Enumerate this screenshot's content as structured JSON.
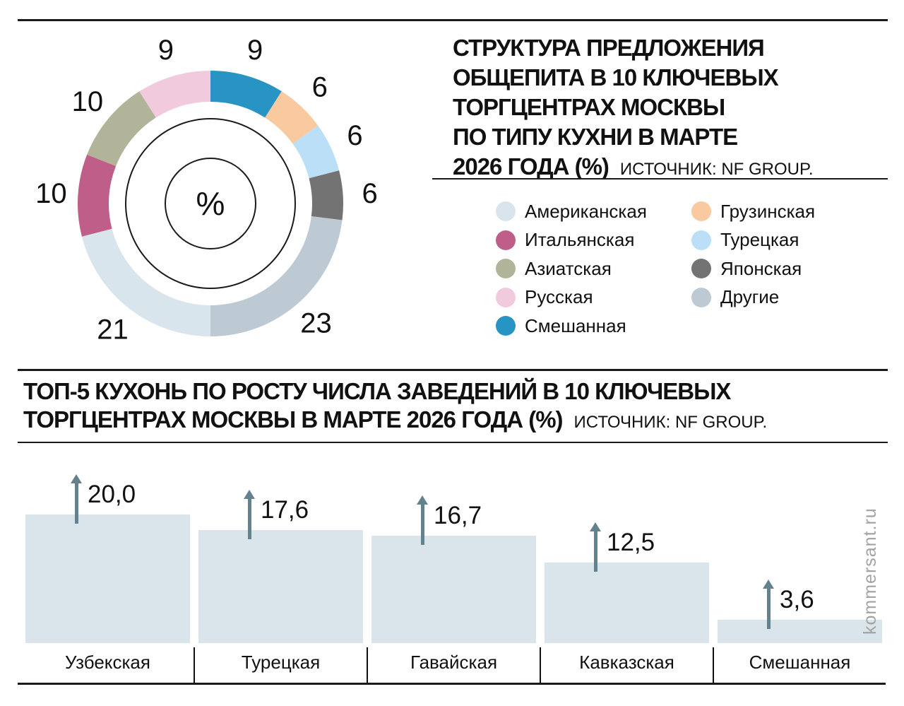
{
  "meta": {
    "brand": "kommersant.ru"
  },
  "donut_section": {
    "title_lines": [
      "СТРУКТУРА ПРЕДЛОЖЕНИЯ",
      "ОБЩЕПИТА В 10 КЛЮЧЕВЫХ",
      "ТОРГЦЕНТРАХ МОСКВЫ",
      "ПО ТИПУ КУХНИ В МАРТЕ",
      "2026 ГОДА (%)"
    ],
    "source": "ИСТОЧНИК: NF GROUP."
  },
  "bar_section": {
    "title_lines": [
      "ТОП-5 КУХОНЬ ПО РОСТУ ЧИСЛА ЗАВЕДЕНИЙ В 10 КЛЮЧЕВЫХ",
      "ТОРГЦЕНТРАХ МОСКВЫ В МАРТЕ 2026 ГОДА (%)"
    ],
    "source": "ИСТОЧНИК: NF GROUP."
  },
  "chart_data": [
    {
      "type": "pie",
      "subtype": "donut",
      "title": "Структура предложения общепита в 10 ключевых торгцентрах Москвы по типу кухни в марте 2026 года (%)",
      "unit": "%",
      "center_label": "%",
      "segments_clockwise_from_top": [
        {
          "label": "Смешанная",
          "value": 9,
          "color": "#2794c4"
        },
        {
          "label": "Грузинская",
          "value": 6,
          "color": "#f9c9a0"
        },
        {
          "label": "Турецкая",
          "value": 6,
          "color": "#bbdff6"
        },
        {
          "label": "Японская",
          "value": 6,
          "color": "#737373"
        },
        {
          "label": "Другие",
          "value": 23,
          "color": "#bdcad4"
        },
        {
          "label": "Американская",
          "value": 21,
          "color": "#d9e5ec"
        },
        {
          "label": "Итальянская",
          "value": 10,
          "color": "#bf5e88"
        },
        {
          "label": "Азиатская",
          "value": 10,
          "color": "#b2b499"
        },
        {
          "label": "Русская",
          "value": 9,
          "color": "#f1cadd"
        }
      ],
      "legend_columns": [
        [
          "Американская",
          "Итальянская",
          "Азиатская",
          "Русская",
          "Смешанная"
        ],
        [
          "Грузинская",
          "Турецкая",
          "Японская",
          "Другие"
        ]
      ],
      "legend_position": "right"
    },
    {
      "type": "bar",
      "title": "Топ-5 кухонь по росту числа заведений в 10 ключевых торгцентрах Москвы в марте 2026 года (%)",
      "unit": "%",
      "categories": [
        "Узбекская",
        "Турецкая",
        "Гавайская",
        "Кавказская",
        "Смешанная"
      ],
      "values": [
        20.0,
        17.6,
        16.7,
        12.5,
        3.6
      ],
      "value_labels": [
        "20,0",
        "17,6",
        "16,7",
        "12,5",
        "3,6"
      ],
      "ylim": [
        0,
        20
      ],
      "grid": false,
      "legend_position": "none",
      "bar_color": "#d9e4eb",
      "arrow_color": "#64828e"
    }
  ]
}
